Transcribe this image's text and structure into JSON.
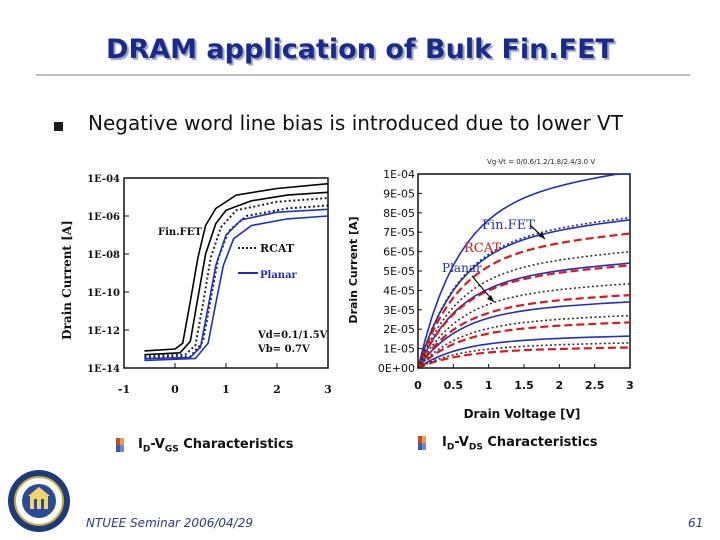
{
  "slide": {
    "title": "DRAM application of Bulk Fin.FET",
    "bullet": "Negative word line bias is introduced due to lower VT",
    "footer_left": "NTUEE Seminar 2006/04/29",
    "page_number": "61",
    "accent_color": "#1a2a8a"
  },
  "captions": {
    "left": {
      "prefix": "I",
      "sub1": "D",
      "mid": "-V",
      "sub2": "GS",
      "suffix": " Characteristics"
    },
    "right": {
      "prefix": "I",
      "sub1": "D",
      "mid": "-V",
      "sub2": "DS",
      "suffix": " Characteristics"
    }
  },
  "chart_data": [
    {
      "type": "line",
      "ylabel": "Drain Current [A]",
      "xlabel": "",
      "xlim": [
        -1,
        3
      ],
      "x_ticks": [
        "-1",
        "0",
        "1",
        "2",
        "3"
      ],
      "x_tick_values": [
        -1,
        0,
        1,
        2,
        3
      ],
      "y_scale": "log",
      "ylim_exp": [
        -14,
        -4
      ],
      "y_ticks": [
        "1E-04",
        "1E-06",
        "1E-08",
        "1E-10",
        "1E-12",
        "1E-14"
      ],
      "y_tick_exps": [
        -4,
        -6,
        -8,
        -10,
        -12,
        -14
      ],
      "annotations": [
        "Vd=0.1/1.5V",
        "Vb= 0.7V"
      ],
      "series": [
        {
          "name": "Fin.FET",
          "color": "#000000",
          "dash": "solid",
          "curves": [
            [
              [
                -0.6,
                -13.1
              ],
              [
                0.0,
                -13.0
              ],
              [
                0.15,
                -12.7
              ],
              [
                0.3,
                -10.5
              ],
              [
                0.45,
                -8.2
              ],
              [
                0.6,
                -6.5
              ],
              [
                0.8,
                -5.6
              ],
              [
                1.2,
                -4.9
              ],
              [
                2.0,
                -4.55
              ],
              [
                3.0,
                -4.3
              ]
            ],
            [
              [
                -0.6,
                -13.3
              ],
              [
                0.1,
                -13.2
              ],
              [
                0.3,
                -12.6
              ],
              [
                0.45,
                -10.3
              ],
              [
                0.6,
                -8.0
              ],
              [
                0.8,
                -6.4
              ],
              [
                1.0,
                -5.7
              ],
              [
                1.5,
                -5.2
              ],
              [
                2.2,
                -4.9
              ],
              [
                3.0,
                -4.75
              ]
            ]
          ]
        },
        {
          "name": "RCAT",
          "color": "#222222",
          "dash": "dotted",
          "curves": [
            [
              [
                -0.6,
                -13.4
              ],
              [
                0.2,
                -13.3
              ],
              [
                0.4,
                -12.8
              ],
              [
                0.55,
                -10.6
              ],
              [
                0.7,
                -8.2
              ],
              [
                0.9,
                -6.6
              ],
              [
                1.2,
                -5.7
              ],
              [
                2.0,
                -5.25
              ],
              [
                3.0,
                -5.05
              ]
            ],
            [
              [
                -0.6,
                -13.5
              ],
              [
                0.3,
                -13.4
              ],
              [
                0.55,
                -12.6
              ],
              [
                0.7,
                -10.4
              ],
              [
                0.85,
                -8.2
              ],
              [
                1.05,
                -6.8
              ],
              [
                1.4,
                -6.0
              ],
              [
                2.2,
                -5.6
              ],
              [
                3.0,
                -5.45
              ]
            ]
          ]
        },
        {
          "name": "Planar",
          "color": "#1f2fbf",
          "dash": "solid",
          "curves": [
            [
              [
                -0.6,
                -13.5
              ],
              [
                0.3,
                -13.45
              ],
              [
                0.5,
                -12.9
              ],
              [
                0.65,
                -10.8
              ],
              [
                0.8,
                -8.6
              ],
              [
                1.0,
                -7.0
              ],
              [
                1.3,
                -6.2
              ],
              [
                2.0,
                -5.8
              ],
              [
                3.0,
                -5.65
              ]
            ],
            [
              [
                -0.6,
                -13.6
              ],
              [
                0.4,
                -13.5
              ],
              [
                0.65,
                -12.7
              ],
              [
                0.8,
                -10.6
              ],
              [
                0.95,
                -8.6
              ],
              [
                1.15,
                -7.2
              ],
              [
                1.5,
                -6.5
              ],
              [
                2.2,
                -6.15
              ],
              [
                3.0,
                -6.0
              ]
            ]
          ]
        }
      ]
    },
    {
      "type": "line",
      "ylabel": "Drain Current [A]",
      "xlabel": "Drain Voltage [V]",
      "header": "Vg-Vt = 0/0.6/1.2/1.8/2.4/3.0 V",
      "xlim": [
        0,
        3
      ],
      "x_ticks": [
        "0",
        "0.5",
        "1",
        "1.5",
        "2",
        "2.5",
        "3"
      ],
      "x_tick_values": [
        0,
        0.5,
        1,
        1.5,
        2,
        2.5,
        3
      ],
      "ylim": [
        0,
        0.0001
      ],
      "y_ticks": [
        "1E-04",
        "9E-05",
        "8E-05",
        "7E-05",
        "6E-05",
        "5E-05",
        "4E-05",
        "3E-05",
        "2E-05",
        "1E-05",
        "0E+00"
      ],
      "y_tick_values": [
        0.0001,
        9e-05,
        8e-05,
        7e-05,
        6e-05,
        5e-05,
        4e-05,
        3e-05,
        2e-05,
        1e-05,
        0
      ],
      "series": [
        {
          "name": "Fin.FET",
          "color": "#1f2fbf",
          "dash": "solid",
          "sat_values": [
            8.6e-05,
            6.5e-05,
            4.6e-05,
            2.9e-05,
            1.4e-05
          ]
        },
        {
          "name": "RCAT",
          "color": "#e01818",
          "dash": "dashed",
          "sat_values": [
            5.9e-05,
            4.5e-05,
            3.2e-05,
            2e-05,
            9e-06
          ]
        },
        {
          "name": "Planar",
          "color": "#333333",
          "dash": "dotted",
          "sat_values": [
            6.6e-05,
            5.1e-05,
            3.7e-05,
            2.3e-05,
            1.1e-05
          ]
        }
      ]
    }
  ]
}
